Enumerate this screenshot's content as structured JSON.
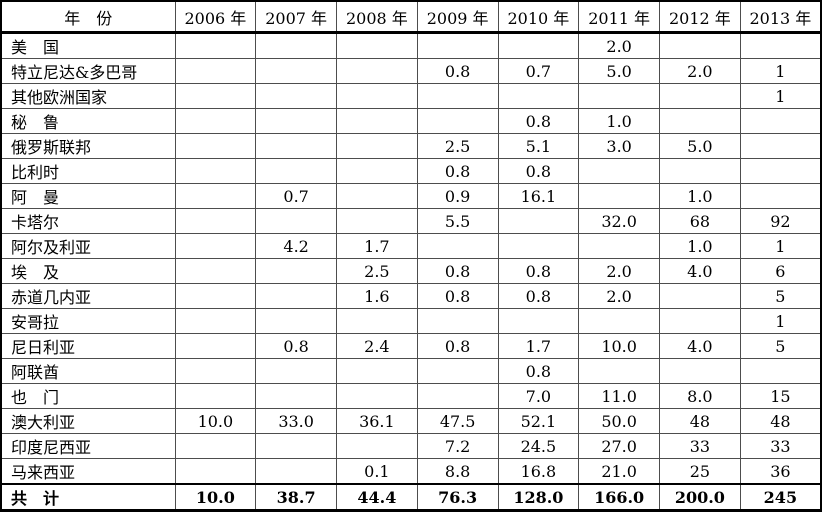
{
  "table": {
    "columns": [
      "年　份",
      "2006 年",
      "2007 年",
      "2008 年",
      "2009 年",
      "2010 年",
      "2011 年",
      "2012 年",
      "2013 年"
    ],
    "rows": [
      {
        "label": "美　国",
        "values": [
          "",
          "",
          "",
          "",
          "",
          "2.0",
          "",
          ""
        ],
        "is_total": false
      },
      {
        "label": "特立尼达&多巴哥",
        "values": [
          "",
          "",
          "",
          "0.8",
          "0.7",
          "5.0",
          "2.0",
          "1"
        ],
        "is_total": false
      },
      {
        "label": "其他欧洲国家",
        "values": [
          "",
          "",
          "",
          "",
          "",
          "",
          "",
          "1"
        ],
        "is_total": false
      },
      {
        "label": "秘　鲁",
        "values": [
          "",
          "",
          "",
          "",
          "0.8",
          "1.0",
          "",
          ""
        ],
        "is_total": false
      },
      {
        "label": "俄罗斯联邦",
        "values": [
          "",
          "",
          "",
          "2.5",
          "5.1",
          "3.0",
          "5.0",
          ""
        ],
        "is_total": false
      },
      {
        "label": "比利时",
        "values": [
          "",
          "",
          "",
          "0.8",
          "0.8",
          "",
          "",
          ""
        ],
        "is_total": false
      },
      {
        "label": "阿　曼",
        "values": [
          "",
          "0.7",
          "",
          "0.9",
          "16.1",
          "",
          "1.0",
          ""
        ],
        "is_total": false
      },
      {
        "label": "卡塔尔",
        "values": [
          "",
          "",
          "",
          "5.5",
          "",
          "32.0",
          "68",
          "92"
        ],
        "is_total": false
      },
      {
        "label": "阿尔及利亚",
        "values": [
          "",
          "4.2",
          "1.7",
          "",
          "",
          "",
          "1.0",
          "1"
        ],
        "is_total": false
      },
      {
        "label": "埃　及",
        "values": [
          "",
          "",
          "2.5",
          "0.8",
          "0.8",
          "2.0",
          "4.0",
          "6"
        ],
        "is_total": false
      },
      {
        "label": "赤道几内亚",
        "values": [
          "",
          "",
          "1.6",
          "0.8",
          "0.8",
          "2.0",
          "",
          "5"
        ],
        "is_total": false
      },
      {
        "label": "安哥拉",
        "values": [
          "",
          "",
          "",
          "",
          "",
          "",
          "",
          "1"
        ],
        "is_total": false
      },
      {
        "label": "尼日利亚",
        "values": [
          "",
          "0.8",
          "2.4",
          "0.8",
          "1.7",
          "10.0",
          "4.0",
          "5"
        ],
        "is_total": false
      },
      {
        "label": "阿联酋",
        "values": [
          "",
          "",
          "",
          "",
          "0.8",
          "",
          "",
          ""
        ],
        "is_total": false
      },
      {
        "label": "也　门",
        "values": [
          "",
          "",
          "",
          "",
          "7.0",
          "11.0",
          "8.0",
          "15"
        ],
        "is_total": false
      },
      {
        "label": "澳大利亚",
        "values": [
          "10.0",
          "33.0",
          "36.1",
          "47.5",
          "52.1",
          "50.0",
          "48",
          "48"
        ],
        "is_total": false
      },
      {
        "label": "印度尼西亚",
        "values": [
          "",
          "",
          "",
          "7.2",
          "24.5",
          "27.0",
          "33",
          "33"
        ],
        "is_total": false
      },
      {
        "label": "马来西亚",
        "values": [
          "",
          "",
          "0.1",
          "8.8",
          "16.8",
          "21.0",
          "25",
          "36"
        ],
        "is_total": false
      },
      {
        "label": "共　计",
        "values": [
          "10.0",
          "38.7",
          "44.4",
          "76.3",
          "128.0",
          "166.0",
          "200.0",
          "245"
        ],
        "is_total": true
      }
    ]
  },
  "chart_data": {
    "type": "table",
    "title": "",
    "categories": [
      "2006",
      "2007",
      "2008",
      "2009",
      "2010",
      "2011",
      "2012",
      "2013"
    ],
    "series": [
      {
        "name": "美国",
        "values": [
          null,
          null,
          null,
          null,
          null,
          2.0,
          null,
          null
        ]
      },
      {
        "name": "特立尼达&多巴哥",
        "values": [
          null,
          null,
          null,
          0.8,
          0.7,
          5.0,
          2.0,
          1
        ]
      },
      {
        "name": "其他欧洲国家",
        "values": [
          null,
          null,
          null,
          null,
          null,
          null,
          null,
          1
        ]
      },
      {
        "name": "秘鲁",
        "values": [
          null,
          null,
          null,
          null,
          0.8,
          1.0,
          null,
          null
        ]
      },
      {
        "name": "俄罗斯联邦",
        "values": [
          null,
          null,
          null,
          2.5,
          5.1,
          3.0,
          5.0,
          null
        ]
      },
      {
        "name": "比利时",
        "values": [
          null,
          null,
          null,
          0.8,
          0.8,
          null,
          null,
          null
        ]
      },
      {
        "name": "阿曼",
        "values": [
          null,
          0.7,
          null,
          0.9,
          16.1,
          null,
          1.0,
          null
        ]
      },
      {
        "name": "卡塔尔",
        "values": [
          null,
          null,
          null,
          5.5,
          null,
          32.0,
          68,
          92
        ]
      },
      {
        "name": "阿尔及利亚",
        "values": [
          null,
          4.2,
          1.7,
          null,
          null,
          null,
          1.0,
          1
        ]
      },
      {
        "name": "埃及",
        "values": [
          null,
          null,
          2.5,
          0.8,
          0.8,
          2.0,
          4.0,
          6
        ]
      },
      {
        "name": "赤道几内亚",
        "values": [
          null,
          null,
          1.6,
          0.8,
          0.8,
          2.0,
          null,
          5
        ]
      },
      {
        "name": "安哥拉",
        "values": [
          null,
          null,
          null,
          null,
          null,
          null,
          null,
          1
        ]
      },
      {
        "name": "尼日利亚",
        "values": [
          null,
          0.8,
          2.4,
          0.8,
          1.7,
          10.0,
          4.0,
          5
        ]
      },
      {
        "name": "阿联酋",
        "values": [
          null,
          null,
          null,
          null,
          0.8,
          null,
          null,
          null
        ]
      },
      {
        "name": "也门",
        "values": [
          null,
          null,
          null,
          null,
          7.0,
          11.0,
          8.0,
          15
        ]
      },
      {
        "name": "澳大利亚",
        "values": [
          10.0,
          33.0,
          36.1,
          47.5,
          52.1,
          50.0,
          48,
          48
        ]
      },
      {
        "name": "印度尼西亚",
        "values": [
          null,
          null,
          null,
          7.2,
          24.5,
          27.0,
          33,
          33
        ]
      },
      {
        "name": "马来西亚",
        "values": [
          null,
          null,
          0.1,
          8.8,
          16.8,
          21.0,
          25,
          36
        ]
      },
      {
        "name": "共计",
        "values": [
          10.0,
          38.7,
          44.4,
          76.3,
          128.0,
          166.0,
          200.0,
          245
        ]
      }
    ]
  },
  "colors": {
    "text": "#000000",
    "grid_line": "#4d4d4d",
    "heavy_line": "#000000",
    "background": "#ffffff"
  }
}
